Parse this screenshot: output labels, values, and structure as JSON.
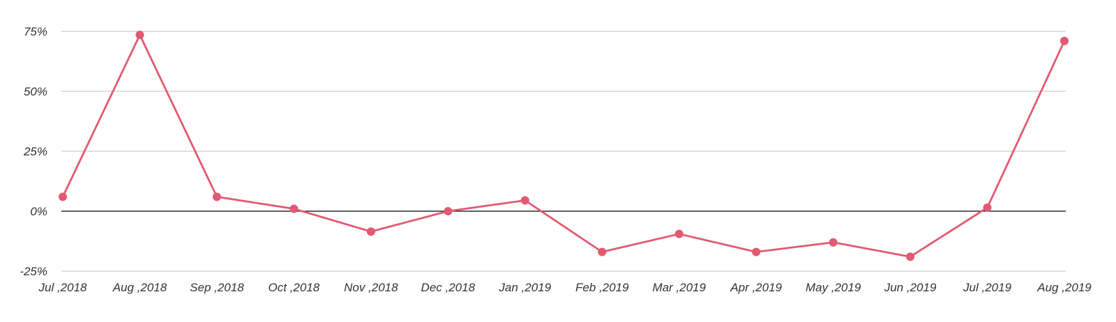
{
  "chart_data": {
    "type": "line",
    "title": "",
    "xlabel": "",
    "ylabel": "",
    "categories": [
      "Jul ,2018",
      "Aug ,2018",
      "Sep ,2018",
      "Oct ,2018",
      "Nov ,2018",
      "Dec ,2018",
      "Jan ,2019",
      "Feb ,2019",
      "Mar ,2019",
      "Apr ,2019",
      "May ,2019",
      "Jun ,2019",
      "Jul ,2019",
      "Aug ,2019"
    ],
    "series": [
      {
        "values": [
          6,
          73.5,
          6,
          1,
          -8.5,
          0,
          4.5,
          -17,
          -9.5,
          -17,
          -13,
          -19,
          1.5,
          71
        ],
        "color": "#e05a72"
      }
    ],
    "ylim": [
      -25,
      75
    ],
    "y_ticks": [
      75,
      50,
      25,
      0,
      -25
    ],
    "y_tick_labels": [
      "75%",
      "50%",
      "25%",
      "0%",
      "-25%"
    ],
    "grid": true,
    "legend": "none"
  }
}
